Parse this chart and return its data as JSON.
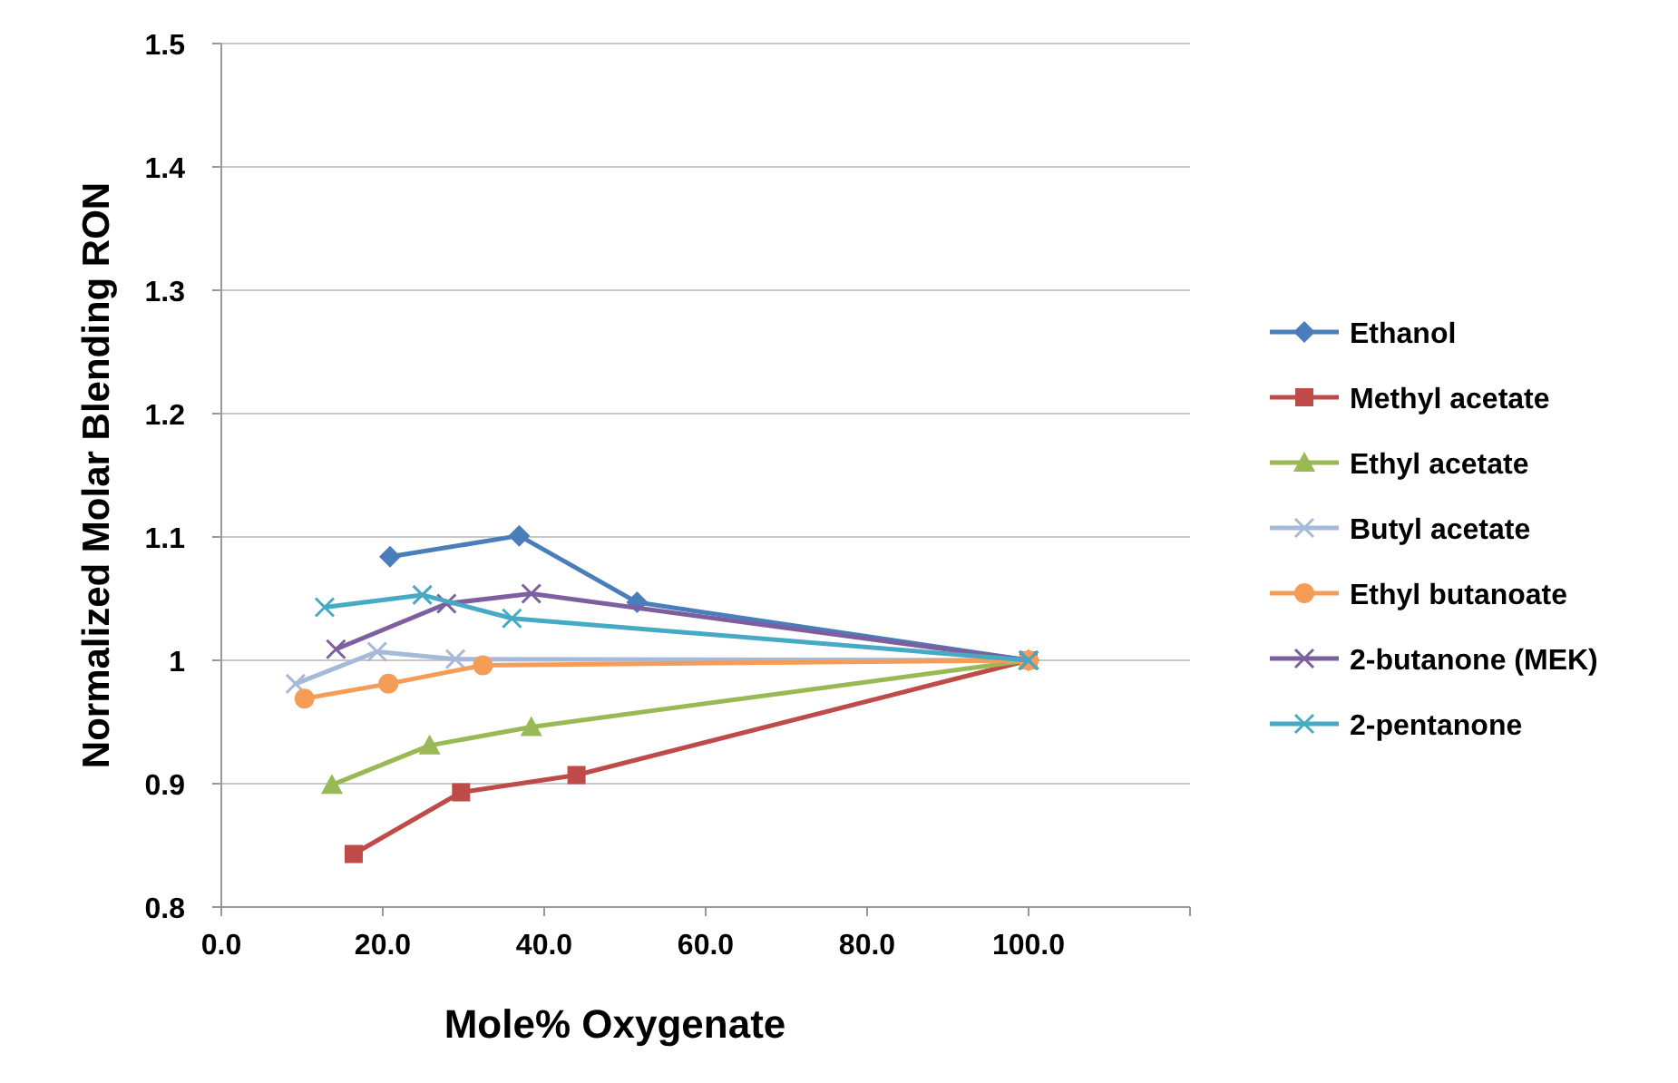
{
  "chart_data": {
    "type": "line",
    "xlabel": "Mole% Oxygenate",
    "ylabel": "Normalized Molar Blending RON",
    "xlim": [
      0,
      120
    ],
    "xticks": [
      {
        "value": 0,
        "label": "0.0"
      },
      {
        "value": 20,
        "label": "20.0"
      },
      {
        "value": 40,
        "label": "40.0"
      },
      {
        "value": 60,
        "label": "60.0"
      },
      {
        "value": 80,
        "label": "80.0"
      },
      {
        "value": 100,
        "label": "100.0"
      },
      {
        "value": 120,
        "label": null
      }
    ],
    "ylim": [
      0.8,
      1.5
    ],
    "yticks": [
      0.8,
      0.9,
      1,
      1.1,
      1.2,
      1.3,
      1.4,
      1.5
    ],
    "grid": "y",
    "legend": "right",
    "series": [
      {
        "name": "Ethanol",
        "color": "#4a7ebb",
        "marker": "diamond",
        "x": [
          20.9,
          36.9,
          51.5,
          100
        ],
        "values": [
          1.084,
          1.101,
          1.047,
          1
        ]
      },
      {
        "name": "Methyl acetate",
        "color": "#be4b48",
        "marker": "square",
        "x": [
          16.4,
          29.7,
          44.0,
          100
        ],
        "values": [
          0.843,
          0.893,
          0.907,
          1
        ]
      },
      {
        "name": "Ethyl acetate",
        "color": "#98b954",
        "marker": "triangle",
        "x": [
          13.7,
          25.8,
          38.4,
          100
        ],
        "values": [
          0.899,
          0.931,
          0.946,
          1
        ]
      },
      {
        "name": "Butyl acetate",
        "color": "#a7b9d9",
        "marker": "cross",
        "x": [
          9.2,
          19.3,
          29.0,
          100
        ],
        "values": [
          0.981,
          1.007,
          1.001,
          1
        ]
      },
      {
        "name": "Ethyl butanoate",
        "color": "#f59d56",
        "marker": "circle",
        "x": [
          10.3,
          20.7,
          32.4,
          100
        ],
        "values": [
          0.969,
          0.981,
          0.996,
          1
        ]
      },
      {
        "name": "2-butanone (MEK)",
        "color": "#7d5fa0",
        "marker": "cross",
        "x": [
          14.2,
          27.9,
          38.4,
          100
        ],
        "values": [
          1.009,
          1.046,
          1.054,
          1
        ]
      },
      {
        "name": "2-pentanone",
        "color": "#46aac5",
        "marker": "cross",
        "x": [
          12.8,
          24.9,
          36.0,
          100
        ],
        "values": [
          1.043,
          1.053,
          1.034,
          1
        ]
      }
    ]
  }
}
